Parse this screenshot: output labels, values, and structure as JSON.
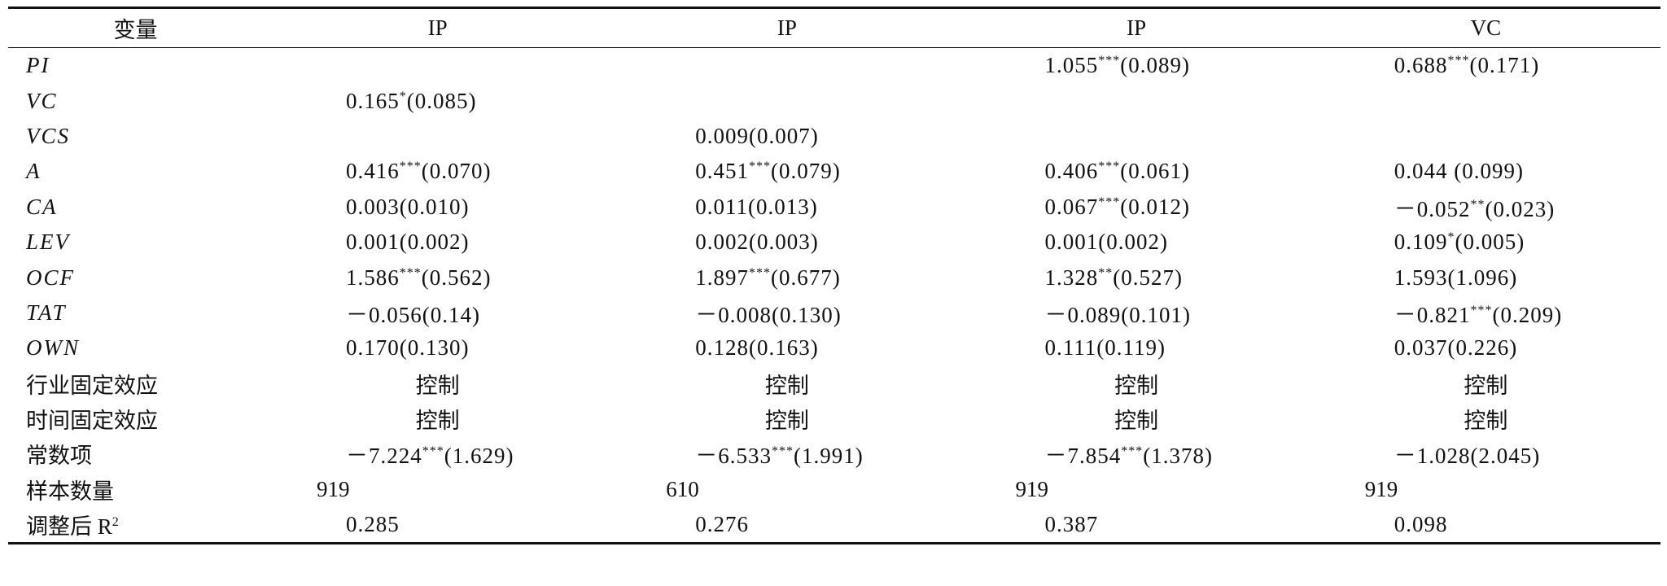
{
  "table": {
    "header": [
      "变量",
      "IP",
      "IP",
      "IP",
      "VC"
    ],
    "rows": [
      {
        "label": "PI",
        "cells": [
          null,
          null,
          {
            "coef": "1.055",
            "sig": "***",
            "se": "(0.089)"
          },
          {
            "coef": "0.688",
            "sig": "***",
            "se": "(0.171)"
          }
        ]
      },
      {
        "label": "VC",
        "cells": [
          {
            "coef": "0.165",
            "sig": "*",
            "se": "(0.085)"
          },
          null,
          null,
          null
        ]
      },
      {
        "label": "VCS",
        "cells": [
          null,
          "0.009(0.007)",
          null,
          null
        ]
      },
      {
        "label": "A",
        "cells": [
          {
            "coef": "0.416",
            "sig": "***",
            "se": "(0.070)"
          },
          {
            "coef": "0.451",
            "sig": "***",
            "se": "(0.079)"
          },
          {
            "coef": "0.406",
            "sig": "***",
            "se": "(0.061)"
          },
          "0.044 (0.099)"
        ]
      },
      {
        "label": "CA",
        "cells": [
          "0.003(0.010)",
          "0.011(0.013)",
          {
            "coef": "0.067",
            "sig": "***",
            "se": "(0.012)"
          },
          {
            "coef": "－0.052",
            "sig": "**",
            "se": "(0.023)"
          }
        ]
      },
      {
        "label": "LEV",
        "cells": [
          "0.001(0.002)",
          "0.002(0.003)",
          "0.001(0.002)",
          {
            "coef": "0.109",
            "sig": "*",
            "se": "(0.005)"
          }
        ]
      },
      {
        "label": "OCF",
        "cells": [
          {
            "coef": "1.586",
            "sig": "***",
            "se": "(0.562)"
          },
          {
            "coef": "1.897",
            "sig": "***",
            "se": "(0.677)"
          },
          {
            "coef": "1.328",
            "sig": "**",
            "se": "(0.527)"
          },
          "1.593(1.096)"
        ]
      },
      {
        "label": "TAT",
        "cells": [
          "－0.056(0.14)",
          "－0.008(0.130)",
          "－0.089(0.101)",
          {
            "coef": "－0.821",
            "sig": "***",
            "se": "(0.209)"
          }
        ]
      },
      {
        "label": "OWN",
        "cells": [
          "0.170(0.130)",
          "0.128(0.163)",
          "0.111(0.119)",
          "0.037(0.226)"
        ]
      },
      {
        "label": "行业固定效应",
        "cells": [
          "控制",
          "控制",
          "控制",
          "控制"
        ]
      },
      {
        "label": "时间固定效应",
        "cells": [
          "控制",
          "控制",
          "控制",
          "控制"
        ]
      },
      {
        "label": "常数项",
        "cells": [
          {
            "coef": "－7.224",
            "sig": "***",
            "se": "(1.629)"
          },
          {
            "coef": "－6.533",
            "sig": "***",
            "se": "(1.991)"
          },
          {
            "coef": "－7.854",
            "sig": "***",
            "se": "(1.378)"
          },
          "－1.028(2.045)"
        ]
      },
      {
        "label": "样本数量",
        "cells": [
          "919",
          "610",
          "919",
          "919"
        ]
      },
      {
        "label": "调整后 R",
        "label_sup": "2",
        "cells": [
          "0.285",
          "0.276",
          "0.387",
          "0.098"
        ]
      }
    ]
  }
}
